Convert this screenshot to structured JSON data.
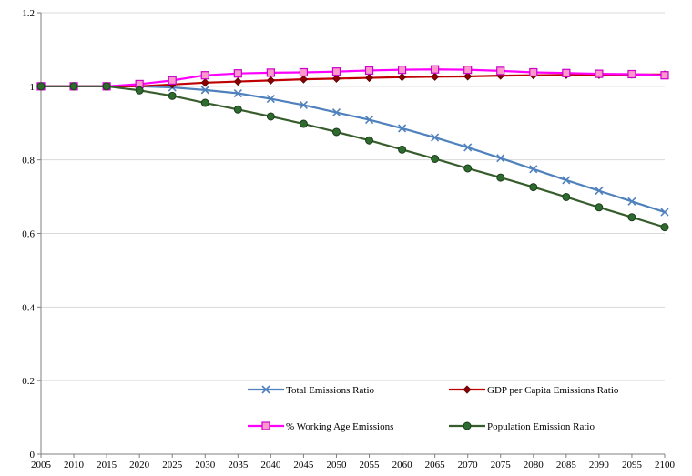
{
  "chart_data": {
    "type": "line",
    "title": "",
    "xlabel": "",
    "ylabel": "",
    "ylim": [
      0,
      1.2
    ],
    "yticks": [
      "0",
      "0.2",
      "0.4",
      "0.6",
      "0.8",
      "1",
      "1.2"
    ],
    "categories": [
      "2005",
      "2010",
      "2015",
      "2020",
      "2025",
      "2030",
      "2035",
      "2040",
      "2045",
      "2050",
      "2055",
      "2060",
      "2065",
      "2070",
      "2075",
      "2080",
      "2085",
      "2090",
      "2095",
      "2100"
    ],
    "grid": true,
    "legend_position": "bottom-inside",
    "series": [
      {
        "name": "Total Emissions Ratio",
        "color": "#4F81BD",
        "marker": "x",
        "values": [
          1.0,
          1.0,
          1.0,
          1.0,
          0.997,
          0.99,
          0.981,
          0.966,
          0.949,
          0.929,
          0.909,
          0.886,
          0.861,
          0.834,
          0.805,
          0.775,
          0.745,
          0.716,
          0.687,
          0.658
        ]
      },
      {
        "name": "GDP per Capita Emissions Ratio",
        "color": "#C00000",
        "marker": "diamond",
        "values": [
          1.0,
          1.0,
          1.0,
          1.0,
          1.005,
          1.01,
          1.013,
          1.016,
          1.019,
          1.021,
          1.023,
          1.025,
          1.026,
          1.027,
          1.029,
          1.03,
          1.031,
          1.031,
          1.032,
          1.032
        ]
      },
      {
        "name": "% Working Age Emissions",
        "color": "#FF00FF",
        "marker": "square",
        "values": [
          1.0,
          1.0,
          1.0,
          1.006,
          1.016,
          1.03,
          1.035,
          1.037,
          1.038,
          1.04,
          1.043,
          1.045,
          1.046,
          1.045,
          1.042,
          1.038,
          1.036,
          1.034,
          1.033,
          1.03
        ]
      },
      {
        "name": "Population Emission Ratio",
        "color": "#385D2C",
        "marker": "circle",
        "values": [
          1.0,
          1.0,
          1.0,
          0.989,
          0.974,
          0.955,
          0.937,
          0.918,
          0.898,
          0.876,
          0.853,
          0.828,
          0.803,
          0.777,
          0.752,
          0.726,
          0.699,
          0.671,
          0.644,
          0.617
        ]
      }
    ]
  }
}
